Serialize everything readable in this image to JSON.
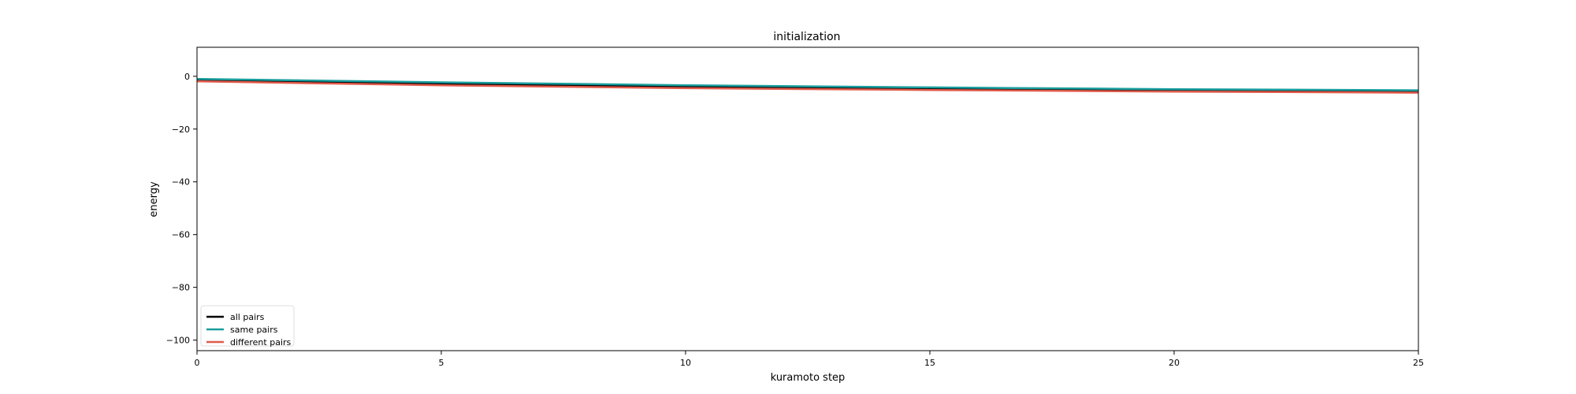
{
  "chart_data": {
    "type": "line",
    "title": "initialization",
    "xlabel": "kuramoto step",
    "ylabel": "energy",
    "xlim": [
      0,
      25
    ],
    "ylim": [
      -104,
      11
    ],
    "xticks": [
      0,
      5,
      10,
      15,
      20,
      25
    ],
    "yticks": [
      0,
      -20,
      -40,
      -60,
      -80,
      -100
    ],
    "grid": false,
    "legend_position": "lower-left",
    "x": [
      0,
      5,
      10,
      15,
      20,
      25
    ],
    "series": [
      {
        "name": "all pairs",
        "color": "#000000",
        "values": [
          -1.4,
          -2.8,
          -3.9,
          -4.7,
          -5.3,
          -5.7
        ]
      },
      {
        "name": "same pairs",
        "color": "#1a9e9e",
        "values": [
          -1.0,
          -2.3,
          -3.4,
          -4.2,
          -4.9,
          -5.3
        ]
      },
      {
        "name": "different pairs",
        "color": "#e05a4a",
        "values": [
          -1.9,
          -3.4,
          -4.5,
          -5.2,
          -5.8,
          -6.2
        ]
      }
    ]
  }
}
